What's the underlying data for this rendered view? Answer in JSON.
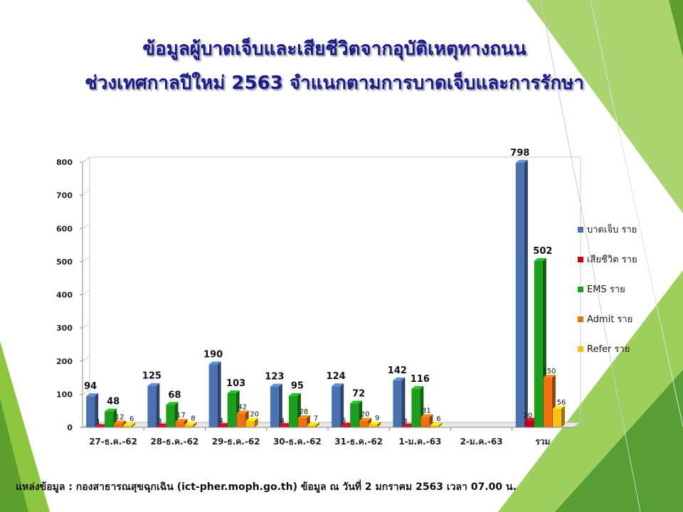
{
  "title_line1": "ข้อมูลผู้บาดเจ็บและเสียชีวิตจากอุบัติเหตุทางถนน",
  "title_line2": "ช่วงเทศกาลปีใหม่ 2563  จำแนกตามการบาดเจ็บและการรักษา",
  "source": "แหล่งข้อมูล : กองสาธารณสุขฉุกเฉิน (ict-pher.moph.go.th) ข้อมูล ณ วันที่ 2 มกราคม 2563 เวลา 07.00 น.",
  "chart_data": {
    "type": "bar",
    "categories": [
      "27-ธ.ค.-62",
      "28-ธ.ค.-62",
      "29-ธ.ค.-62",
      "30-ธ.ค.-62",
      "31-ธ.ค.-62",
      "1-ม.ค.-63",
      "2-ม.ค.-63",
      "รวม"
    ],
    "series": [
      {
        "name": "บาดเจ็บ ราย",
        "color": "#4a72b0",
        "values": [
          94,
          125,
          190,
          123,
          124,
          142,
          null,
          798
        ]
      },
      {
        "name": "เสียชีวิต ราย",
        "color": "#c0001a",
        "values": [
          1,
          3,
          4,
          4,
          5,
          3,
          null,
          20
        ]
      },
      {
        "name": "EMS ราย",
        "color": "#1aa01a",
        "values": [
          48,
          68,
          103,
          95,
          72,
          116,
          null,
          502
        ]
      },
      {
        "name": "Admit ราย",
        "color": "#f07010",
        "values": [
          12,
          17,
          42,
          28,
          20,
          31,
          null,
          150
        ]
      },
      {
        "name": "Refer ราย",
        "color": "#f8c010",
        "values": [
          6,
          8,
          20,
          7,
          9,
          6,
          null,
          56
        ]
      }
    ],
    "yticks": [
      0,
      100,
      200,
      300,
      400,
      500,
      600,
      700,
      800
    ],
    "ylim": [
      0,
      800
    ],
    "legend_position": "right",
    "grid": false
  }
}
